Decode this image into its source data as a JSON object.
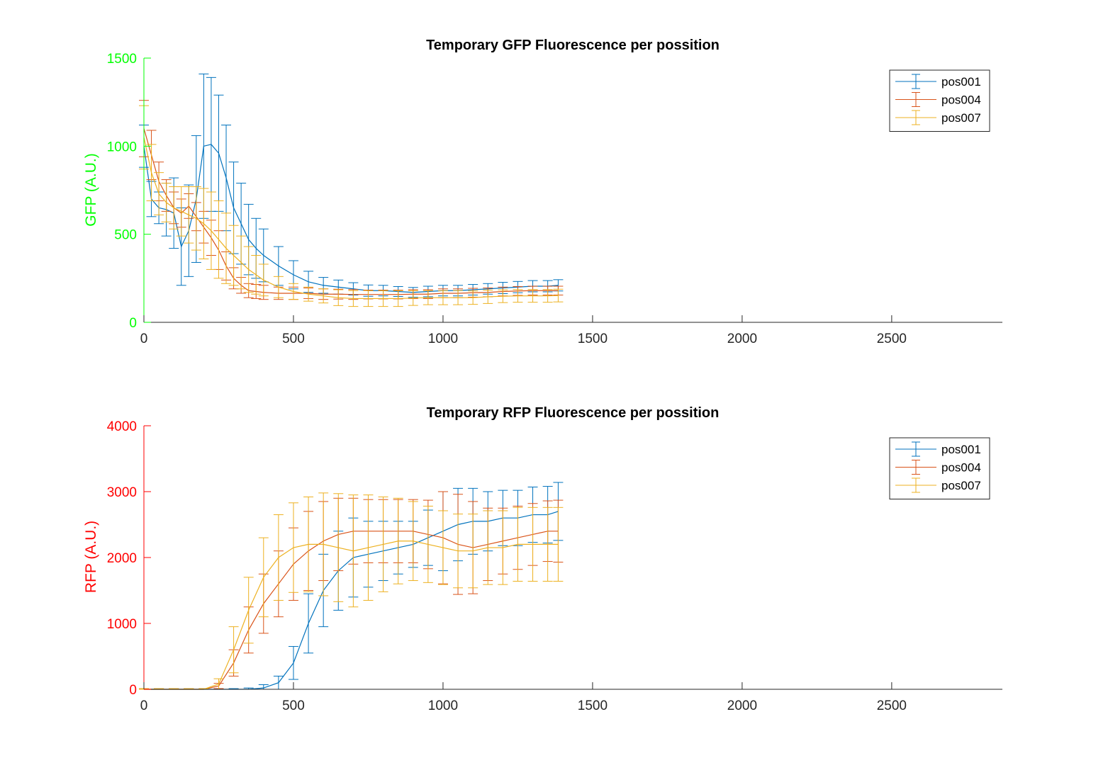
{
  "chart_data": [
    {
      "type": "line",
      "title": "Temporary GFP Fluorescence per possition",
      "xlabel": "",
      "ylabel": "GFP (A.U.)",
      "ylabel_color": "#00ff00",
      "xlim": [
        0,
        2870
      ],
      "ylim": [
        0,
        1500
      ],
      "xticks": [
        0,
        500,
        1000,
        1500,
        2000,
        2500
      ],
      "yticks": [
        0,
        500,
        1000,
        1500
      ],
      "grid": false,
      "legend_position": "top-right",
      "error_bars": true,
      "series": [
        {
          "name": "pos001",
          "color": "#0072bd",
          "x": [
            0,
            25,
            50,
            75,
            100,
            125,
            150,
            175,
            200,
            225,
            250,
            275,
            300,
            325,
            350,
            375,
            400,
            450,
            500,
            550,
            600,
            650,
            700,
            750,
            800,
            850,
            900,
            950,
            1000,
            1050,
            1100,
            1150,
            1200,
            1250,
            1300,
            1350,
            1385
          ],
          "y": [
            1000,
            700,
            650,
            640,
            620,
            430,
            520,
            700,
            1000,
            1010,
            960,
            820,
            650,
            560,
            470,
            420,
            380,
            320,
            270,
            230,
            210,
            200,
            190,
            180,
            180,
            175,
            170,
            175,
            180,
            180,
            185,
            190,
            195,
            200,
            205,
            205,
            210
          ],
          "err": [
            120,
            100,
            90,
            150,
            200,
            220,
            260,
            360,
            410,
            380,
            330,
            300,
            260,
            230,
            200,
            170,
            150,
            110,
            80,
            60,
            45,
            40,
            35,
            32,
            30,
            28,
            28,
            30,
            30,
            30,
            30,
            30,
            32,
            32,
            32,
            32,
            32
          ]
        },
        {
          "name": "pos004",
          "color": "#d95319",
          "x": [
            0,
            25,
            50,
            75,
            100,
            125,
            150,
            175,
            200,
            225,
            250,
            275,
            300,
            325,
            350,
            375,
            400,
            450,
            500,
            550,
            600,
            650,
            700,
            750,
            800,
            850,
            900,
            950,
            1000,
            1050,
            1100,
            1150,
            1200,
            1250,
            1300,
            1350,
            1385
          ],
          "y": [
            1100,
            950,
            800,
            720,
            650,
            620,
            660,
            600,
            540,
            480,
            410,
            320,
            250,
            210,
            180,
            175,
            170,
            165,
            165,
            165,
            160,
            160,
            158,
            158,
            158,
            158,
            160,
            160,
            165,
            165,
            168,
            170,
            175,
            178,
            180,
            180,
            180
          ],
          "err": [
            160,
            140,
            110,
            90,
            90,
            80,
            70,
            80,
            90,
            100,
            110,
            80,
            60,
            45,
            40,
            40,
            40,
            35,
            35,
            30,
            30,
            28,
            28,
            25,
            25,
            25,
            25,
            25,
            25,
            25,
            25,
            25,
            25,
            25,
            25,
            25,
            25
          ]
        },
        {
          "name": "pos007",
          "color": "#edb120",
          "x": [
            0,
            25,
            50,
            75,
            100,
            125,
            150,
            175,
            200,
            225,
            250,
            275,
            300,
            325,
            350,
            375,
            400,
            450,
            500,
            550,
            600,
            650,
            700,
            750,
            800,
            850,
            900,
            950,
            1000,
            1050,
            1100,
            1150,
            1200,
            1250,
            1300,
            1350,
            1385
          ],
          "y": [
            1050,
            850,
            730,
            680,
            650,
            630,
            610,
            590,
            560,
            520,
            470,
            420,
            380,
            340,
            300,
            270,
            240,
            200,
            175,
            160,
            150,
            140,
            135,
            135,
            135,
            135,
            138,
            140,
            140,
            140,
            140,
            145,
            148,
            150,
            150,
            150,
            152
          ],
          "err": [
            180,
            160,
            120,
            110,
            120,
            140,
            160,
            180,
            200,
            220,
            220,
            200,
            170,
            150,
            130,
            110,
            90,
            60,
            45,
            40,
            40,
            45,
            45,
            45,
            45,
            45,
            42,
            40,
            40,
            40,
            38,
            38,
            36,
            36,
            36,
            36,
            36
          ]
        }
      ]
    },
    {
      "type": "line",
      "title": "Temporary RFP Fluorescence per possition",
      "xlabel": "",
      "ylabel": "RFP (A.U.)",
      "ylabel_color": "#ff0000",
      "xlim": [
        0,
        2870
      ],
      "ylim": [
        0,
        4000
      ],
      "xticks": [
        0,
        500,
        1000,
        1500,
        2000,
        2500
      ],
      "yticks": [
        0,
        1000,
        2000,
        3000,
        4000
      ],
      "grid": false,
      "legend_position": "top-right",
      "error_bars": true,
      "series": [
        {
          "name": "pos001",
          "color": "#0072bd",
          "x": [
            0,
            50,
            100,
            150,
            200,
            250,
            300,
            350,
            400,
            450,
            500,
            550,
            600,
            650,
            700,
            750,
            800,
            850,
            900,
            950,
            1000,
            1050,
            1100,
            1150,
            1200,
            1250,
            1300,
            1350,
            1385
          ],
          "y": [
            0,
            0,
            0,
            0,
            0,
            0,
            0,
            0,
            20,
            100,
            400,
            1000,
            1500,
            1800,
            2000,
            2050,
            2100,
            2150,
            2200,
            2300,
            2400,
            2500,
            2550,
            2550,
            2600,
            2600,
            2650,
            2650,
            2700
          ],
          "err": [
            10,
            10,
            10,
            10,
            10,
            10,
            10,
            20,
            50,
            100,
            250,
            450,
            550,
            600,
            600,
            500,
            450,
            400,
            350,
            420,
            600,
            550,
            500,
            450,
            420,
            420,
            420,
            430,
            440
          ]
        },
        {
          "name": "pos004",
          "color": "#d95319",
          "x": [
            0,
            50,
            100,
            150,
            200,
            250,
            300,
            350,
            400,
            450,
            500,
            550,
            600,
            650,
            700,
            750,
            800,
            850,
            900,
            950,
            1000,
            1050,
            1100,
            1150,
            1200,
            1250,
            1300,
            1350,
            1385
          ],
          "y": [
            0,
            0,
            0,
            0,
            0,
            50,
            400,
            900,
            1300,
            1600,
            1900,
            2100,
            2250,
            2350,
            2400,
            2400,
            2400,
            2400,
            2400,
            2350,
            2300,
            2200,
            2150,
            2200,
            2250,
            2300,
            2350,
            2400,
            2400
          ],
          "err": [
            10,
            10,
            10,
            10,
            10,
            40,
            200,
            350,
            450,
            500,
            550,
            600,
            600,
            550,
            500,
            480,
            480,
            480,
            480,
            520,
            700,
            760,
            700,
            550,
            500,
            480,
            470,
            460,
            470
          ]
        },
        {
          "name": "pos007",
          "color": "#edb120",
          "x": [
            0,
            50,
            100,
            150,
            200,
            250,
            300,
            350,
            400,
            450,
            500,
            550,
            600,
            650,
            700,
            750,
            800,
            850,
            900,
            950,
            1000,
            1050,
            1100,
            1150,
            1200,
            1250,
            1300,
            1350,
            1385
          ],
          "y": [
            0,
            0,
            0,
            0,
            0,
            80,
            600,
            1200,
            1700,
            2000,
            2150,
            2200,
            2200,
            2150,
            2100,
            2150,
            2200,
            2250,
            2250,
            2200,
            2150,
            2100,
            2100,
            2150,
            2150,
            2200,
            2200,
            2200,
            2200
          ],
          "err": [
            10,
            10,
            10,
            10,
            10,
            80,
            350,
            500,
            600,
            650,
            680,
            720,
            780,
            820,
            850,
            800,
            720,
            650,
            600,
            580,
            560,
            560,
            560,
            560,
            560,
            560,
            560,
            560,
            560
          ]
        }
      ]
    }
  ]
}
